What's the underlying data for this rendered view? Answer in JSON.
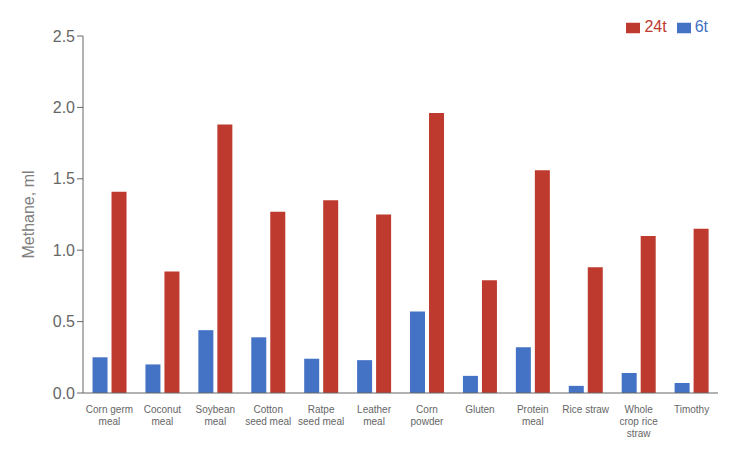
{
  "chart_data": {
    "type": "bar",
    "categories": [
      "Corn germ\nmeal",
      "Coconut\nmeal",
      "Soybean\nmeal",
      "Cotton\nseed meal",
      "Ratpe\nseed meal",
      "Leather\nmeal",
      "Corn\npowder",
      "Gluten",
      "Protein\nmeal",
      "Rice straw",
      "Whole\ncrop rice\nstraw",
      "Timothy"
    ],
    "series": [
      {
        "name": "6t",
        "color": "#4472C4",
        "values": [
          0.25,
          0.2,
          0.44,
          0.39,
          0.24,
          0.23,
          0.57,
          0.12,
          0.32,
          0.05,
          0.14,
          0.07
        ]
      },
      {
        "name": "24t",
        "color": "#BE3A2E",
        "values": [
          1.41,
          0.85,
          1.88,
          1.27,
          1.35,
          1.25,
          1.96,
          0.79,
          1.56,
          0.88,
          1.1,
          1.15
        ]
      }
    ],
    "ylabel": "Methane, ml",
    "ylim": [
      0,
      2.5
    ],
    "yticks": [
      {
        "value": 0,
        "label": "0.0"
      },
      0.5,
      {
        "value": 1.0,
        "label": "1.0"
      },
      1.5,
      {
        "value": 2.0,
        "label": "2.0"
      },
      2.5
    ],
    "legend": "upper right",
    "grid": false
  }
}
